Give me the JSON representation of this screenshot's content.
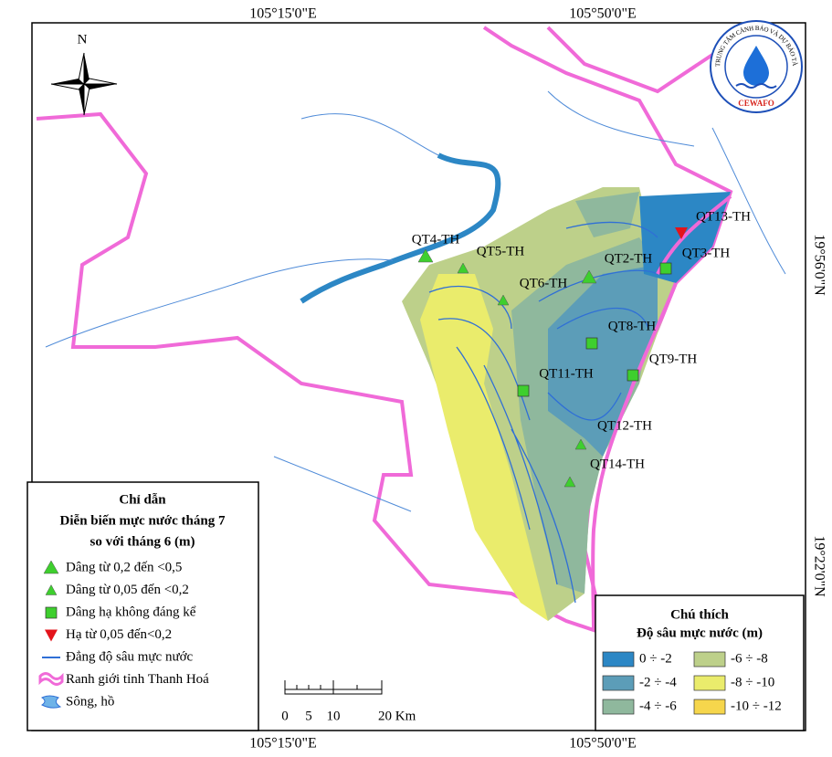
{
  "map": {
    "coordinates": {
      "top": [
        "105°15'0\"E",
        "105°50'0\"E"
      ],
      "bottom": [
        "105°15'0\"E",
        "105°50'0\"E"
      ],
      "right": [
        "19°56'0\"N",
        "19°22'0\"N"
      ]
    },
    "north_arrow": "N",
    "logo": {
      "name": "CEWAFO",
      "ring": "TRUNG TÂM CẢNH BÁO VÀ DỰ BÁO TÀI NGUYÊN NƯỚC"
    },
    "legend": {
      "title": "Chỉ dẫn",
      "subtitle_lines": [
        "Diễn biến mực nước tháng 7",
        "so với tháng 6 (m)"
      ],
      "items": [
        {
          "label": "Dâng từ 0,2 đến <0,5",
          "symbol": "triangle-large",
          "color": "#3ecf2e",
          "stations": [
            "QT4-TH",
            "QT2-TH"
          ]
        },
        {
          "label": "Dâng từ 0,05 đến <0,2",
          "symbol": "triangle",
          "color": "#3ecf2e",
          "stations": [
            "QT5-TH",
            "QT6-TH",
            "QT12-TH",
            "QT14-TH"
          ]
        },
        {
          "label": "Dâng hạ không đáng kể",
          "symbol": "square",
          "color": "#3ecf2e",
          "stations": [
            "QT3-TH",
            "QT8-TH",
            "QT9-TH",
            "QT11-TH"
          ]
        },
        {
          "label": "Hạ từ 0,05 đến<0,2",
          "symbol": "triangle-down",
          "color": "#e3141b",
          "stations": [
            "QT13-TH"
          ]
        },
        {
          "label": "Đẳng độ sâu mực nước",
          "symbol": "line",
          "color": "#2f6fd6"
        },
        {
          "label": "Ranh giới tỉnh Thanh Hoá",
          "symbol": "boundary",
          "color": "#f06ad8"
        },
        {
          "label": "Sông, hồ",
          "symbol": "water",
          "color": "#6fb3e8"
        }
      ]
    },
    "scale_bar": [
      "0",
      "5",
      "10",
      "20 Km"
    ],
    "depth_legend": {
      "title": "Chú thích",
      "subtitle": "Độ sâu mực nước (m)",
      "classes": [
        {
          "label": "0 ÷ -2",
          "color": "#2c87c5"
        },
        {
          "label": "-2 ÷ -4",
          "color": "#5c9db8"
        },
        {
          "label": "-4 ÷ -6",
          "color": "#8fb89d"
        },
        {
          "label": "-6 ÷ -8",
          "color": "#bdd08a"
        },
        {
          "label": "-8 ÷ -10",
          "color": "#eaec6c"
        },
        {
          "label": "-10 ÷ -12",
          "color": "#f6d64c"
        }
      ]
    }
  }
}
